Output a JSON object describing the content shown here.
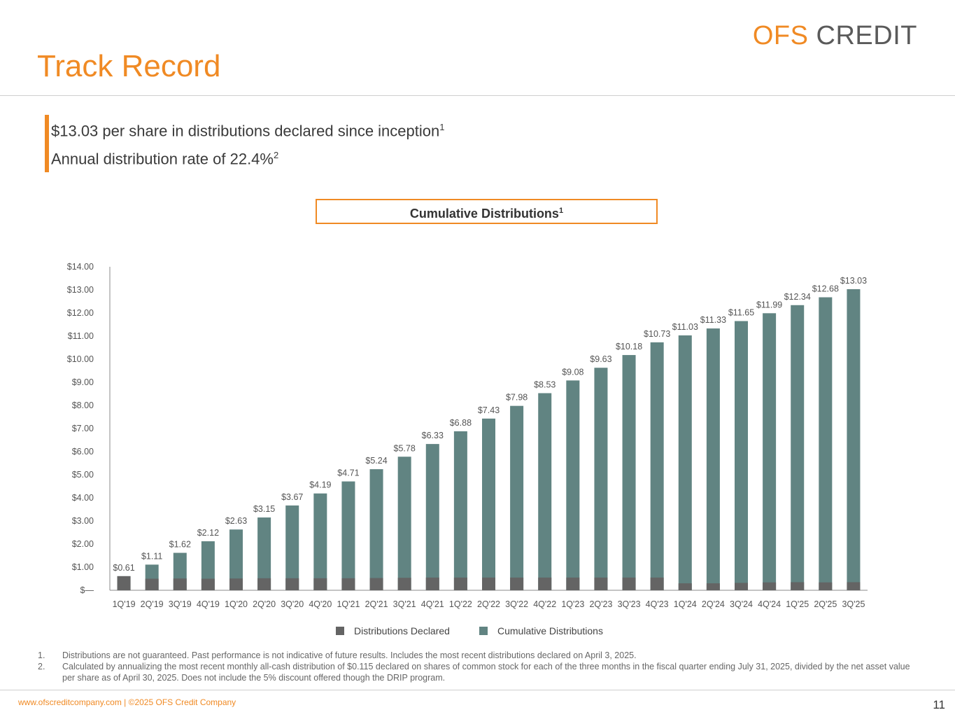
{
  "header": {
    "logo_ofs": "OFS",
    "logo_credit": "CREDIT",
    "title": "Track Record"
  },
  "highlights": {
    "line1": "$13.03 per share in distributions declared since inception",
    "line1_sup": "1",
    "line2": "Annual distribution rate of 22.4%",
    "line2_sup": "2"
  },
  "chart_box": {
    "title": "Cumulative Distributions",
    "sup": "1"
  },
  "chart_data": {
    "type": "bar",
    "title": "Cumulative Distributions",
    "categories": [
      "1Q'19",
      "2Q'19",
      "3Q'19",
      "4Q'19",
      "1Q'20",
      "2Q'20",
      "3Q'20",
      "4Q'20",
      "1Q'21",
      "2Q'21",
      "3Q'21",
      "4Q'21",
      "1Q'22",
      "2Q'22",
      "3Q'22",
      "4Q'22",
      "1Q'23",
      "2Q'23",
      "3Q'23",
      "4Q'23",
      "1Q'24",
      "2Q'24",
      "3Q'24",
      "4Q'24",
      "1Q'25",
      "2Q'25",
      "3Q'25"
    ],
    "series": [
      {
        "name": "Distributions Declared",
        "color": "#646464",
        "values": [
          0.61,
          0.5,
          0.51,
          0.5,
          0.51,
          0.52,
          0.52,
          0.52,
          0.52,
          0.53,
          0.54,
          0.55,
          0.55,
          0.55,
          0.55,
          0.55,
          0.55,
          0.55,
          0.55,
          0.55,
          0.3,
          0.3,
          0.32,
          0.34,
          0.35,
          0.34,
          0.35
        ]
      },
      {
        "name": "Cumulative Distributions",
        "color": "#618482",
        "values": [
          0.61,
          1.11,
          1.62,
          2.12,
          2.63,
          3.15,
          3.67,
          4.19,
          4.71,
          5.24,
          5.78,
          6.33,
          6.88,
          7.43,
          7.98,
          8.53,
          9.08,
          9.63,
          10.18,
          10.73,
          11.03,
          11.33,
          11.65,
          11.99,
          12.34,
          12.68,
          13.03
        ]
      }
    ],
    "data_labels": [
      "$0.61",
      "$1.11",
      "$1.62",
      "$2.12",
      "$2.63",
      "$3.15",
      "$3.67",
      "$4.19",
      "$4.71",
      "$5.24",
      "$5.78",
      "$6.33",
      "$6.88",
      "$7.43",
      "$7.98",
      "$8.53",
      "$9.08",
      "$9.63",
      "$10.18",
      "$10.73",
      "$11.03",
      "$11.33",
      "$11.65",
      "$11.99",
      "$12.34",
      "$12.68",
      "$13.03"
    ],
    "yticks": [
      0,
      1,
      2,
      3,
      4,
      5,
      6,
      7,
      8,
      9,
      10,
      11,
      12,
      13,
      14
    ],
    "ytick_labels": [
      "$—",
      "$1.00",
      "$2.00",
      "$3.00",
      "$4.00",
      "$5.00",
      "$6.00",
      "$7.00",
      "$8.00",
      "$9.00",
      "$10.00",
      "$11.00",
      "$12.00",
      "$13.00",
      "$14.00"
    ],
    "ylim": [
      0,
      14
    ],
    "xlabel": "",
    "ylabel": "",
    "legend": "bottom"
  },
  "footnotes": [
    {
      "num": "1.",
      "text": "Distributions are not guaranteed. Past performance is not indicative of future results. Includes the most recent distributions declared on April 3, 2025."
    },
    {
      "num": "2.",
      "text": "Calculated by annualizing the most recent monthly all-cash distribution of $0.115 declared on shares of common stock for each of the three months in the fiscal quarter ending July 31, 2025, divided by the net asset value per share as of April 30, 2025. Does not include the 5% discount offered though the DRIP program."
    }
  ],
  "footer": {
    "text": "www.ofscreditcompany.com |   ©2025 OFS Credit Company",
    "page": "11"
  }
}
